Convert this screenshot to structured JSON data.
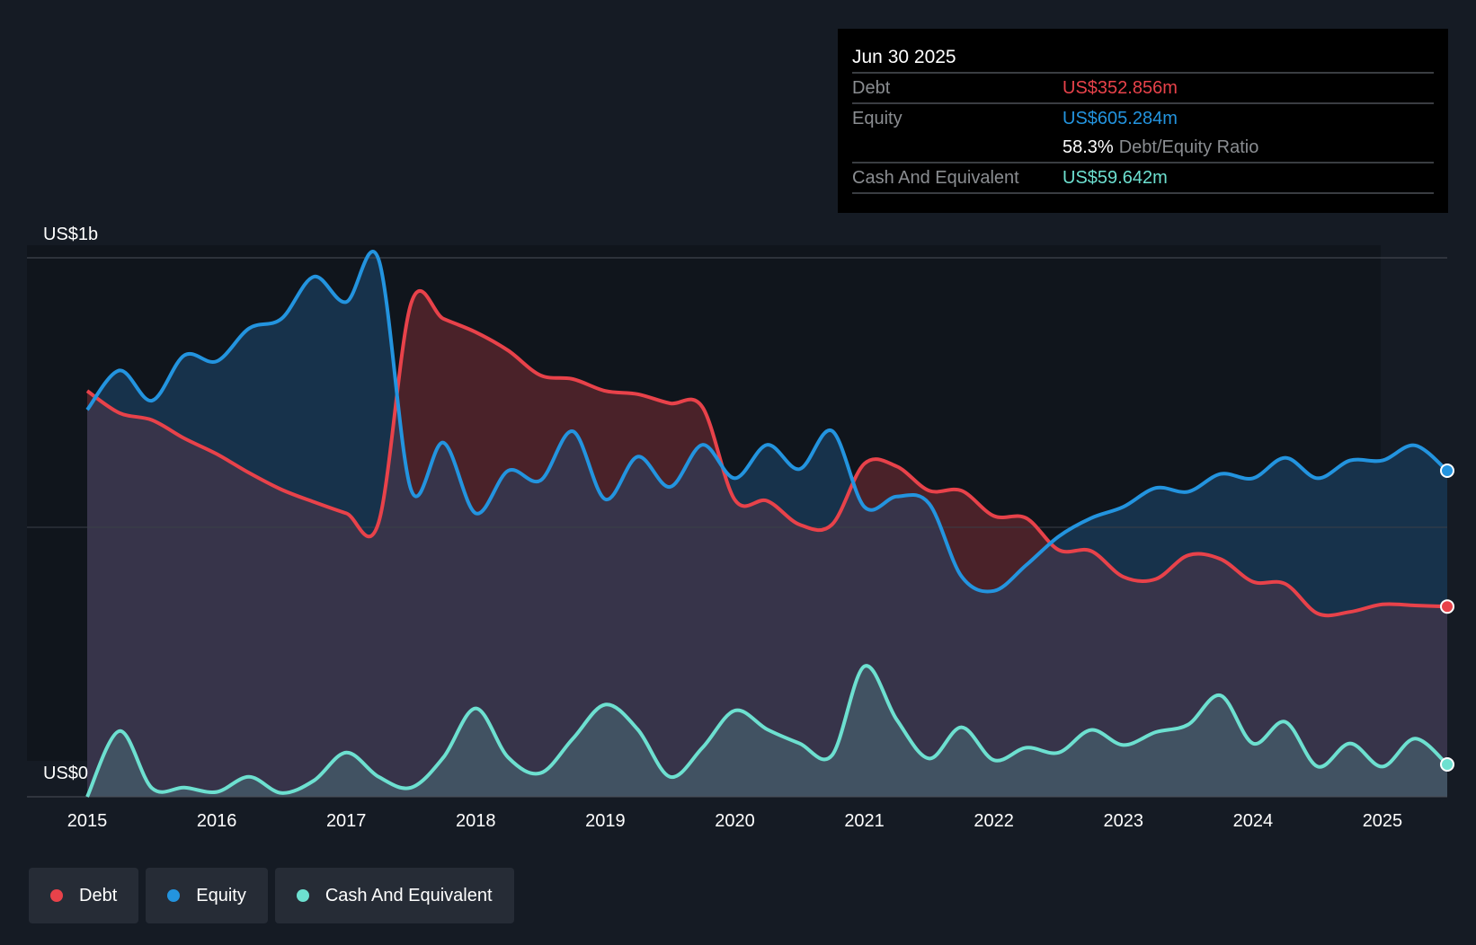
{
  "tooltip": {
    "date": "Jun 30 2025",
    "debt_label": "Debt",
    "debt_value": "US$352.856m",
    "equity_label": "Equity",
    "equity_value": "US$605.284m",
    "ratio_value": "58.3%",
    "ratio_label": "Debt/Equity Ratio",
    "cash_label": "Cash And Equivalent",
    "cash_value": "US$59.642m"
  },
  "legend": [
    {
      "label": "Debt",
      "color": "#e8424a"
    },
    {
      "label": "Equity",
      "color": "#2394df"
    },
    {
      "label": "Cash And Equivalent",
      "color": "#6de0d0"
    }
  ],
  "chart_data": {
    "type": "line",
    "title": "",
    "ylabel_top": "US$1b",
    "ylabel_bottom": "US$0",
    "ylim": [
      0,
      1000
    ],
    "xlim": [
      2015,
      2025.5
    ],
    "units": "US$ millions",
    "xticks": [
      "2015",
      "2016",
      "2017",
      "2018",
      "2019",
      "2020",
      "2021",
      "2022",
      "2023",
      "2024",
      "2025"
    ],
    "x": [
      2015,
      2015.25,
      2015.5,
      2015.75,
      2016,
      2016.25,
      2016.5,
      2016.75,
      2017,
      2017.25,
      2017.5,
      2017.75,
      2018,
      2018.25,
      2018.5,
      2018.75,
      2019,
      2019.25,
      2019.5,
      2019.75,
      2020,
      2020.25,
      2020.5,
      2020.75,
      2021,
      2021.25,
      2021.5,
      2021.75,
      2022,
      2022.25,
      2022.5,
      2022.75,
      2023,
      2023.25,
      2023.5,
      2023.75,
      2024,
      2024.25,
      2024.5,
      2024.75,
      2025,
      2025.25,
      2025.5
    ],
    "series": [
      {
        "name": "Debt",
        "color": "#e8424a",
        "values": [
          753,
          712,
          699,
          665,
          636,
          601,
          570,
          547,
          526,
          509,
          915,
          887,
          862,
          828,
          782,
          775,
          753,
          747,
          730,
          723,
          551,
          549,
          505,
          505,
          618,
          613,
          568,
          568,
          521,
          517,
          458,
          456,
          408,
          404,
          448,
          441,
          399,
          395,
          340,
          343,
          357,
          355,
          353
        ]
      },
      {
        "name": "Equity",
        "color": "#2394df",
        "values": [
          718,
          791,
          735,
          819,
          808,
          869,
          887,
          965,
          918,
          997,
          570,
          657,
          526,
          605,
          587,
          678,
          552,
          631,
          575,
          653,
          591,
          653,
          608,
          679,
          538,
          557,
          544,
          409,
          382,
          430,
          483,
          517,
          538,
          573,
          566,
          599,
          591,
          629,
          591,
          624,
          624,
          652,
          605
        ]
      },
      {
        "name": "Cash And Equivalent",
        "color": "#6de0d0",
        "values": [
          0,
          122,
          16,
          17,
          9,
          37,
          7,
          30,
          82,
          37,
          17,
          73,
          164,
          73,
          44,
          108,
          171,
          125,
          37,
          91,
          160,
          125,
          99,
          77,
          242,
          143,
          71,
          129,
          68,
          91,
          82,
          124,
          96,
          120,
          134,
          188,
          99,
          139,
          56,
          99,
          56,
          108,
          60
        ]
      }
    ]
  }
}
